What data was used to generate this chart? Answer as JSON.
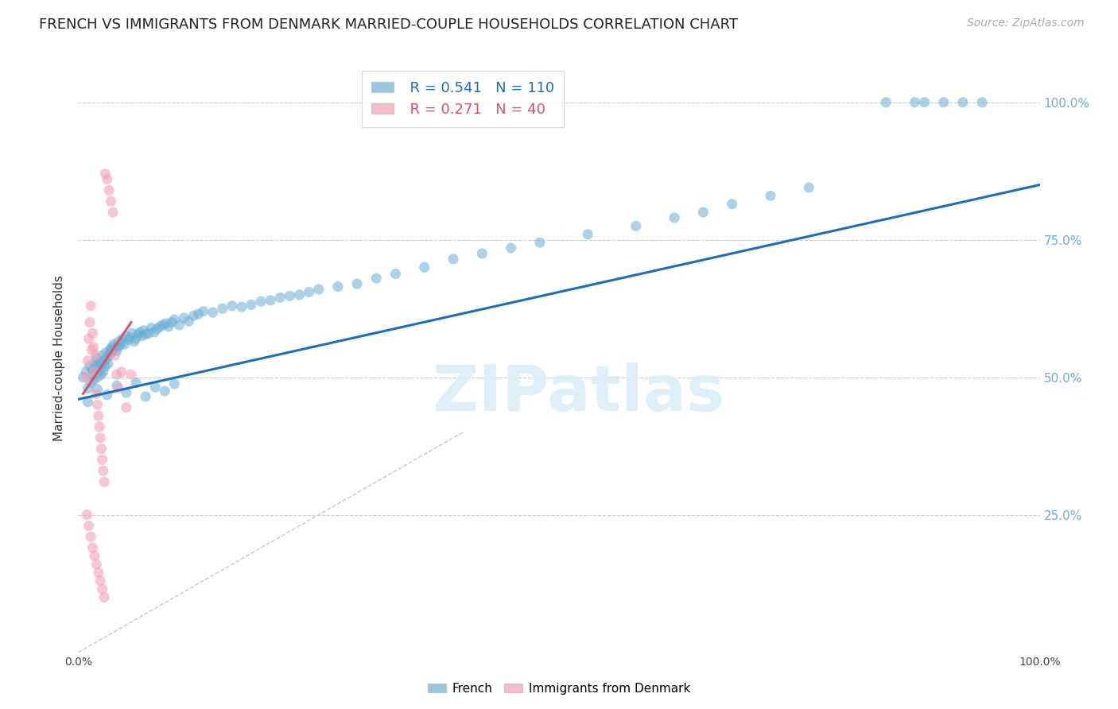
{
  "title": "FRENCH VS IMMIGRANTS FROM DENMARK MARRIED-COUPLE HOUSEHOLDS CORRELATION CHART",
  "source": "Source: ZipAtlas.com",
  "ylabel": "Married-couple Households",
  "watermark": "ZIPatlas",
  "blue_R": 0.541,
  "blue_N": 110,
  "pink_R": 0.271,
  "pink_N": 40,
  "blue_color": "#6baed6",
  "blue_line_color": "#1a6fbd",
  "pink_color": "#f4a0b5",
  "pink_line_color": "#d9536a",
  "diag_color": "#c8c8c8",
  "right_label_color": "#6baed6",
  "ytick_labels": [
    "100.0%",
    "75.0%",
    "50.0%",
    "25.0%"
  ],
  "ytick_values": [
    1.0,
    0.75,
    0.5,
    0.25
  ],
  "blue_x": [
    0.005,
    0.008,
    0.01,
    0.012,
    0.013,
    0.015,
    0.015,
    0.016,
    0.017,
    0.018,
    0.019,
    0.02,
    0.02,
    0.021,
    0.022,
    0.023,
    0.024,
    0.025,
    0.025,
    0.026,
    0.027,
    0.028,
    0.029,
    0.03,
    0.031,
    0.032,
    0.033,
    0.034,
    0.035,
    0.036,
    0.037,
    0.038,
    0.04,
    0.041,
    0.042,
    0.043,
    0.045,
    0.046,
    0.048,
    0.05,
    0.052,
    0.054,
    0.056,
    0.058,
    0.06,
    0.062,
    0.064,
    0.066,
    0.068,
    0.07,
    0.073,
    0.076,
    0.079,
    0.082,
    0.085,
    0.088,
    0.091,
    0.094,
    0.097,
    0.1,
    0.105,
    0.11,
    0.115,
    0.12,
    0.125,
    0.13,
    0.14,
    0.15,
    0.16,
    0.17,
    0.18,
    0.19,
    0.2,
    0.21,
    0.22,
    0.23,
    0.24,
    0.25,
    0.27,
    0.29,
    0.31,
    0.33,
    0.36,
    0.39,
    0.42,
    0.45,
    0.48,
    0.53,
    0.58,
    0.62,
    0.65,
    0.68,
    0.72,
    0.76,
    0.84,
    0.87,
    0.88,
    0.9,
    0.92,
    0.94,
    0.01,
    0.02,
    0.03,
    0.04,
    0.05,
    0.06,
    0.07,
    0.08,
    0.09,
    0.1
  ],
  "blue_y": [
    0.5,
    0.51,
    0.48,
    0.52,
    0.49,
    0.515,
    0.505,
    0.495,
    0.525,
    0.51,
    0.535,
    0.5,
    0.52,
    0.51,
    0.53,
    0.515,
    0.505,
    0.525,
    0.54,
    0.51,
    0.53,
    0.52,
    0.545,
    0.535,
    0.525,
    0.54,
    0.55,
    0.545,
    0.555,
    0.548,
    0.56,
    0.552,
    0.548,
    0.555,
    0.565,
    0.558,
    0.562,
    0.57,
    0.56,
    0.575,
    0.568,
    0.572,
    0.58,
    0.565,
    0.57,
    0.578,
    0.582,
    0.575,
    0.585,
    0.578,
    0.58,
    0.59,
    0.582,
    0.588,
    0.592,
    0.595,
    0.598,
    0.592,
    0.6,
    0.605,
    0.595,
    0.608,
    0.602,
    0.612,
    0.615,
    0.62,
    0.618,
    0.625,
    0.63,
    0.628,
    0.632,
    0.638,
    0.64,
    0.645,
    0.648,
    0.65,
    0.655,
    0.66,
    0.665,
    0.67,
    0.68,
    0.688,
    0.7,
    0.715,
    0.725,
    0.735,
    0.745,
    0.76,
    0.775,
    0.79,
    0.8,
    0.815,
    0.83,
    0.845,
    1.0,
    1.0,
    1.0,
    1.0,
    1.0,
    1.0,
    0.455,
    0.478,
    0.468,
    0.485,
    0.472,
    0.49,
    0.465,
    0.482,
    0.475,
    0.488
  ],
  "pink_x": [
    0.008,
    0.01,
    0.011,
    0.012,
    0.013,
    0.014,
    0.015,
    0.016,
    0.017,
    0.018,
    0.019,
    0.02,
    0.021,
    0.022,
    0.023,
    0.024,
    0.025,
    0.026,
    0.027,
    0.028,
    0.03,
    0.032,
    0.034,
    0.036,
    0.038,
    0.04,
    0.042,
    0.045,
    0.05,
    0.055,
    0.009,
    0.011,
    0.013,
    0.015,
    0.017,
    0.019,
    0.021,
    0.023,
    0.025,
    0.027
  ],
  "pink_y": [
    0.5,
    0.53,
    0.57,
    0.6,
    0.63,
    0.55,
    0.58,
    0.555,
    0.51,
    0.54,
    0.47,
    0.45,
    0.43,
    0.41,
    0.39,
    0.37,
    0.35,
    0.33,
    0.31,
    0.87,
    0.86,
    0.84,
    0.82,
    0.8,
    0.54,
    0.505,
    0.48,
    0.51,
    0.445,
    0.505,
    0.25,
    0.23,
    0.21,
    0.19,
    0.175,
    0.16,
    0.145,
    0.13,
    0.115,
    0.1
  ],
  "blue_line_x": [
    0.0,
    1.0
  ],
  "blue_line_y": [
    0.46,
    0.85
  ],
  "pink_line_x": [
    0.005,
    0.055
  ],
  "pink_line_y": [
    0.47,
    0.6
  ],
  "xmin": 0.0,
  "xmax": 1.0,
  "ymin": 0.0,
  "ymax": 1.07,
  "background_color": "#ffffff",
  "grid_color": "#cccccc",
  "title_fontsize": 13,
  "source_fontsize": 10,
  "legend_fontsize": 13,
  "axis_label_fontsize": 11
}
